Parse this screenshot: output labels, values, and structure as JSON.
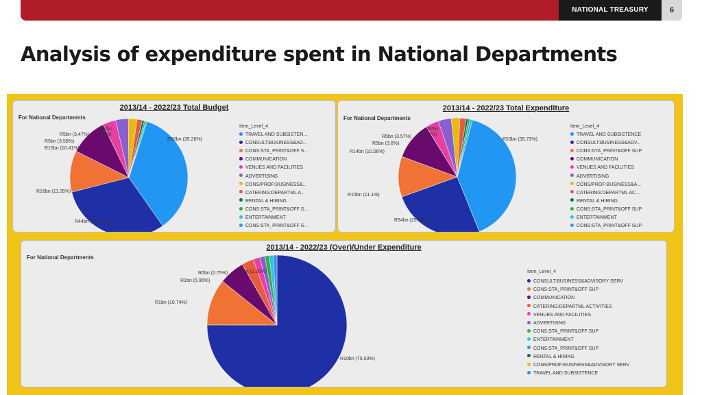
{
  "header": {
    "brand": "NATIONAL TREASURY",
    "page_number": "6",
    "accent_color": "#b01c27"
  },
  "page_title": "Analysis of expenditure spent in National Departments",
  "chart_data": [
    {
      "type": "pie",
      "title": "2013/14 - 2022/23 Total Budget",
      "subtitle": "For National Departments",
      "legend_title": "Item_Level_4",
      "legend": [
        {
          "label": "TRAVEL AND SUBSISTEN...",
          "color": "#2196f3"
        },
        {
          "label": "CONSULT:BUSINESS&AD...",
          "color": "#1f2fa5"
        },
        {
          "label": "CONS:STA_PRINT&OFF S...",
          "color": "#f07234"
        },
        {
          "label": "COMMUNICATION",
          "color": "#6a0a6e"
        },
        {
          "label": "VENUES AND FACILITIES",
          "color": "#e83fa2"
        },
        {
          "label": "ADVERTISING",
          "color": "#8b5fcf"
        },
        {
          "label": "CONS/PROF:BUSINESS&...",
          "color": "#e8b90f"
        },
        {
          "label": "CATERING:DEPARTML A...",
          "color": "#e85a3c"
        },
        {
          "label": "RENTAL & HIRING",
          "color": "#0e6b5c"
        },
        {
          "label": "CONS:STA_PRINT&OFF S...",
          "color": "#2fae4a"
        },
        {
          "label": "ENTERTAINMENT",
          "color": "#29c4dc"
        },
        {
          "label": "CONS:STA_PRINT&OFF S...",
          "color": "#3b8fe8"
        }
      ],
      "slices": [
        {
          "value": 35.26,
          "color": "#2196f3",
          "label": "R50bn (35.26%)"
        },
        {
          "value": 30.78,
          "color": "#1f2fa5",
          "label": "R44bn (30.78%)"
        },
        {
          "value": 11.35,
          "color": "#f07234",
          "label": "R16bn (11.35%)"
        },
        {
          "value": 10.41,
          "color": "#6a0a6e",
          "label": "R15bn (10.41%)"
        },
        {
          "value": 3.58,
          "color": "#e83fa2",
          "label": "R5bn (3.58%)"
        },
        {
          "value": 3.47,
          "color": "#8b5fcf",
          "label": "R5bn (3.47%)"
        },
        {
          "value": 2.4,
          "color": "#e8b90f",
          "label": "R3bn"
        },
        {
          "value": 1.4,
          "color": "#e85a3c",
          "label": "(1.4%)"
        },
        {
          "value": 0.6,
          "color": "#0e6b5c",
          "label": ""
        },
        {
          "value": 0.4,
          "color": "#2fae4a",
          "label": ""
        },
        {
          "value": 0.35,
          "color": "#29c4dc",
          "label": ""
        }
      ]
    },
    {
      "type": "pie",
      "title": "2013/14 - 2022/23 Total Expenditure",
      "subtitle": "For National Departments",
      "legend_title": "Item_Level_4",
      "legend": [
        {
          "label": "TRAVEL AND SUBSISTENCE",
          "color": "#2196f3"
        },
        {
          "label": "CONSULT:BUSINESS&ADV...",
          "color": "#1f2fa5"
        },
        {
          "label": "CONS:STA_PRINT&OFF SUP",
          "color": "#f07234"
        },
        {
          "label": "COMMUNICATION",
          "color": "#6a0a6e"
        },
        {
          "label": "VENUES AND FACILITIES",
          "color": "#e83fa2"
        },
        {
          "label": "ADVERTISING",
          "color": "#8b5fcf"
        },
        {
          "label": "CONS/PROF:BUSINESS&A...",
          "color": "#e8b90f"
        },
        {
          "label": "CATERING:DEPARTML AC...",
          "color": "#e85a3c"
        },
        {
          "label": "RENTAL & HIRING",
          "color": "#0e6b5c"
        },
        {
          "label": "CONS:STA_PRINT&OFF SUP",
          "color": "#2fae4a"
        },
        {
          "label": "ENTERTAINMENT",
          "color": "#29c4dc"
        },
        {
          "label": "CONS:STA_PRINT&OFF SUP",
          "color": "#3b8fe8"
        }
      ],
      "slices": [
        {
          "value": 39.73,
          "color": "#2196f3",
          "label": "R53bn (39.73%)"
        },
        {
          "value": 25.62,
          "color": "#1f2fa5",
          "label": "R34bn (25.62%)"
        },
        {
          "value": 11.1,
          "color": "#f07234",
          "label": "R15bn (11.1%)"
        },
        {
          "value": 10.56,
          "color": "#6a0a6e",
          "label": "R14bn (10.56%)"
        },
        {
          "value": 3.6,
          "color": "#e83fa2",
          "label": "R5bn (3.6%)"
        },
        {
          "value": 3.57,
          "color": "#8b5fcf",
          "label": "R5bn (3.57%)"
        },
        {
          "value": 2.4,
          "color": "#e8b90f",
          "label": "R2bn"
        },
        {
          "value": 1.66,
          "color": "#e85a3c",
          "label": "(1.66%)"
        },
        {
          "value": 0.6,
          "color": "#0e6b5c",
          "label": ""
        },
        {
          "value": 0.5,
          "color": "#2fae4a",
          "label": ""
        },
        {
          "value": 0.66,
          "color": "#29c4dc",
          "label": ""
        }
      ]
    },
    {
      "type": "pie",
      "title": "2013/14 - 2022/23 (Over)/Under Expenditure",
      "subtitle": "For National Departments",
      "legend_title": "Item_Level_4",
      "legend": [
        {
          "label": "CONSULT:BUSINESS&ADVISORY SERV",
          "color": "#1f2fa5"
        },
        {
          "label": "CONS:STA_PRINT&OFF SUP",
          "color": "#f07234"
        },
        {
          "label": "COMMUNICATION",
          "color": "#6a0a6e"
        },
        {
          "label": "CATERING:DEPARTML ACTIVITIES",
          "color": "#e85a3c"
        },
        {
          "label": "VENUES AND FACILITIES",
          "color": "#e83fa2"
        },
        {
          "label": "ADVERTISING",
          "color": "#8b5fcf"
        },
        {
          "label": "CONS:STA_PRINT&OFF SUP",
          "color": "#2fae4a"
        },
        {
          "label": "ENTERTAINMENT",
          "color": "#29c4dc"
        },
        {
          "label": "CONS:STA_PRINT&OFF SUP",
          "color": "#3b8fe8"
        },
        {
          "label": "RENTAL & HIRING",
          "color": "#0e6b5c"
        },
        {
          "label": "CONS/PROF:BUSINESS&ADVISORY SERV",
          "color": "#e8b90f"
        },
        {
          "label": "TRAVEL AND SUBSISTENCE",
          "color": "#2196f3"
        }
      ],
      "slices": [
        {
          "value": 75.03,
          "color": "#1f2fa5",
          "label": "R10bn (75.03%)"
        },
        {
          "value": 10.74,
          "color": "#f07234",
          "label": "R1bn (10.74%)"
        },
        {
          "value": 5.96,
          "color": "#6a0a6e",
          "label": "R1bn (5.96%)"
        },
        {
          "value": 2.75,
          "color": "#e85a3c",
          "label": "R0bn (2.75%)"
        },
        {
          "value": 1.55,
          "color": "#e83fa2",
          "label": "R0bn (1.55%)"
        },
        {
          "value": 1.2,
          "color": "#8b5fcf",
          "label": ""
        },
        {
          "value": 1.0,
          "color": "#2fae4a",
          "label": ""
        },
        {
          "value": 0.9,
          "color": "#29c4dc",
          "label": ""
        },
        {
          "value": 0.87,
          "color": "#3b8fe8",
          "label": ""
        }
      ]
    }
  ]
}
